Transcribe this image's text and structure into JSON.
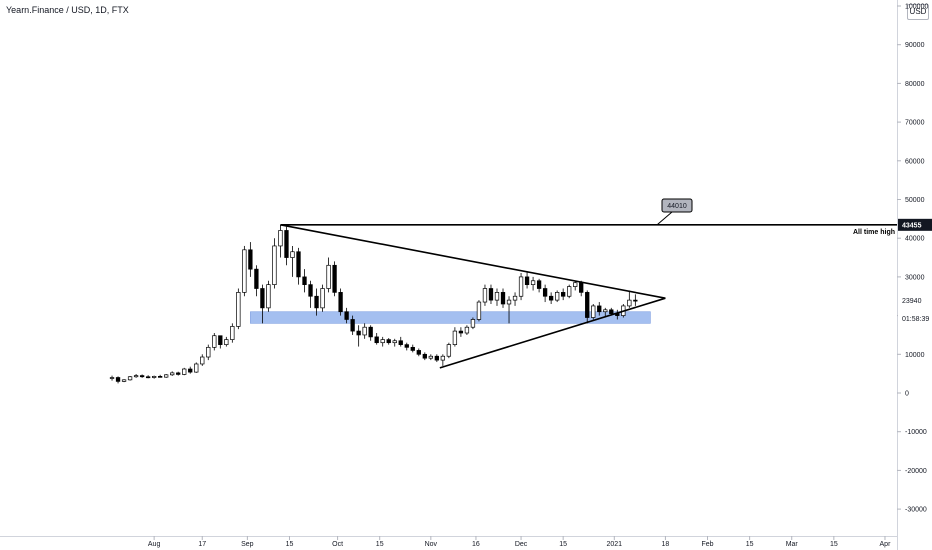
{
  "header": {
    "title": "Yearn.Finance / USD, 1D, FTX",
    "currency_button": "USD"
  },
  "chart_data": {
    "type": "candlestick",
    "title": "Yearn.Finance / USD, 1D, FTX",
    "y_ticks": [
      100000,
      90000,
      80000,
      70000,
      60000,
      50000,
      40000,
      30000,
      20000,
      10000,
      0,
      -10000,
      -20000,
      -30000
    ],
    "y_tick_labels": [
      "100000",
      "90000",
      "80000",
      "70000",
      "60000",
      "50000",
      "40000",
      "30000",
      "20000",
      "10000",
      "0",
      "-10000",
      "-20000",
      "-30000"
    ],
    "ylim": [
      -37000,
      102000
    ],
    "x_ticks": [
      {
        "label": "Aug",
        "date": "2020-08-01"
      },
      {
        "label": "17",
        "date": "2020-08-17"
      },
      {
        "label": "Sep",
        "date": "2020-09-01"
      },
      {
        "label": "15",
        "date": "2020-09-15"
      },
      {
        "label": "Oct",
        "date": "2020-10-01"
      },
      {
        "label": "15",
        "date": "2020-10-15"
      },
      {
        "label": "Nov",
        "date": "2020-11-01"
      },
      {
        "label": "16",
        "date": "2020-11-16"
      },
      {
        "label": "Dec",
        "date": "2020-12-01"
      },
      {
        "label": "15",
        "date": "2020-12-15"
      },
      {
        "label": "2021",
        "date": "2021-01-01"
      },
      {
        "label": "18",
        "date": "2021-01-18"
      },
      {
        "label": "Feb",
        "date": "2021-02-01"
      },
      {
        "label": "15",
        "date": "2021-02-15"
      },
      {
        "label": "Mar",
        "date": "2021-03-01"
      },
      {
        "label": "15",
        "date": "2021-03-15"
      },
      {
        "label": "Apr",
        "date": "2021-04-01"
      }
    ],
    "xlim": [
      "2020-07-14",
      "2021-04-05"
    ],
    "price_markers": [
      {
        "label": "43455",
        "value": 43455,
        "style": "dark"
      },
      {
        "label": "23940",
        "value": 23940,
        "style": "plain"
      },
      {
        "label": "01:58:39",
        "value": 19300,
        "style": "plain"
      }
    ],
    "annotations": {
      "all_time_high_label": "All time high",
      "callout_label": "44010"
    },
    "ath_line": {
      "start": "2020-09-12",
      "end": "2021-04-05",
      "value": 43455
    },
    "triangle": {
      "upper": [
        {
          "date": "2020-09-12",
          "value": 43455
        },
        {
          "date": "2021-01-18",
          "value": 24500
        }
      ],
      "lower": [
        {
          "date": "2020-11-04",
          "value": 6500
        },
        {
          "date": "2021-01-18",
          "value": 24500
        }
      ]
    },
    "support_zone": {
      "start": "2020-09-02",
      "end": "2021-01-13",
      "low": 18000,
      "high": 21000,
      "color": "#a4bff0"
    },
    "candles": [
      [
        "2020-07-18",
        3800,
        4500,
        3200,
        4000
      ],
      [
        "2020-07-20",
        4000,
        4300,
        2500,
        3000
      ],
      [
        "2020-07-22",
        3000,
        3600,
        2800,
        3400
      ],
      [
        "2020-07-24",
        3400,
        4400,
        3200,
        4200
      ],
      [
        "2020-07-26",
        4200,
        4900,
        3900,
        4500
      ],
      [
        "2020-07-28",
        4500,
        4800,
        3900,
        4200
      ],
      [
        "2020-07-30",
        4200,
        4600,
        3800,
        4000
      ],
      [
        "2020-08-01",
        4000,
        4500,
        3700,
        4300
      ],
      [
        "2020-08-03",
        4300,
        4700,
        4000,
        4100
      ],
      [
        "2020-08-05",
        4100,
        4900,
        3900,
        4700
      ],
      [
        "2020-08-07",
        4700,
        5600,
        4400,
        5200
      ],
      [
        "2020-08-09",
        5200,
        5500,
        4500,
        4800
      ],
      [
        "2020-08-11",
        4800,
        6500,
        4600,
        6200
      ],
      [
        "2020-08-13",
        6200,
        6800,
        5000,
        5400
      ],
      [
        "2020-08-15",
        5400,
        7900,
        5200,
        7500
      ],
      [
        "2020-08-17",
        7500,
        10000,
        7000,
        9300
      ],
      [
        "2020-08-19",
        9300,
        12500,
        8500,
        11800
      ],
      [
        "2020-08-21",
        11800,
        15500,
        11000,
        14800
      ],
      [
        "2020-08-23",
        14800,
        14500,
        11500,
        12500
      ],
      [
        "2020-08-25",
        12500,
        14500,
        12000,
        13800
      ],
      [
        "2020-08-27",
        13800,
        18000,
        13000,
        17200
      ],
      [
        "2020-08-29",
        17200,
        27000,
        16500,
        26000
      ],
      [
        "2020-08-31",
        26000,
        38000,
        25000,
        37000
      ],
      [
        "2020-09-02",
        37000,
        39000,
        30000,
        32000
      ],
      [
        "2020-09-04",
        32000,
        33000,
        25000,
        27000
      ],
      [
        "2020-09-06",
        27000,
        28000,
        18000,
        22000
      ],
      [
        "2020-09-08",
        22000,
        29000,
        21000,
        28000
      ],
      [
        "2020-09-10",
        28000,
        40000,
        27000,
        38000
      ],
      [
        "2020-09-12",
        38000,
        43455,
        35000,
        42000
      ],
      [
        "2020-09-14",
        42000,
        43000,
        33000,
        35000
      ],
      [
        "2020-09-16",
        35000,
        38000,
        30000,
        36500
      ],
      [
        "2020-09-18",
        36500,
        37500,
        28000,
        30000
      ],
      [
        "2020-09-20",
        30000,
        32000,
        26000,
        28000
      ],
      [
        "2020-09-22",
        28000,
        29000,
        22000,
        25000
      ],
      [
        "2020-09-24",
        25000,
        27000,
        20000,
        22000
      ],
      [
        "2020-09-26",
        22000,
        28000,
        21000,
        27000
      ],
      [
        "2020-09-28",
        27000,
        35000,
        26000,
        33000
      ],
      [
        "2020-09-30",
        33000,
        34000,
        25000,
        26000
      ],
      [
        "2020-10-02",
        26000,
        27000,
        20000,
        21000
      ],
      [
        "2020-10-04",
        21000,
        22000,
        18000,
        19000
      ],
      [
        "2020-10-06",
        19000,
        20000,
        15000,
        16000
      ],
      [
        "2020-10-08",
        16000,
        17500,
        12000,
        15000
      ],
      [
        "2020-10-10",
        15000,
        18000,
        14000,
        17000
      ],
      [
        "2020-10-12",
        17000,
        17500,
        13500,
        14500
      ],
      [
        "2020-10-14",
        14500,
        15500,
        12500,
        13000
      ],
      [
        "2020-10-16",
        13000,
        14500,
        12000,
        13800
      ],
      [
        "2020-10-18",
        13800,
        14200,
        12500,
        13000
      ],
      [
        "2020-10-20",
        13000,
        14000,
        12000,
        13500
      ],
      [
        "2020-10-22",
        13500,
        14500,
        12000,
        12500
      ],
      [
        "2020-10-24",
        12500,
        13000,
        11000,
        11800
      ],
      [
        "2020-10-26",
        11800,
        12500,
        10500,
        11000
      ],
      [
        "2020-10-28",
        11000,
        11500,
        9500,
        10000
      ],
      [
        "2020-10-30",
        10000,
        10500,
        8500,
        9000
      ],
      [
        "2020-11-01",
        9000,
        10000,
        8500,
        9500
      ],
      [
        "2020-11-03",
        9500,
        10000,
        8000,
        8500
      ],
      [
        "2020-11-05",
        8500,
        10000,
        7000,
        9500
      ],
      [
        "2020-11-07",
        9500,
        13000,
        9000,
        12500
      ],
      [
        "2020-11-09",
        12500,
        17000,
        12000,
        16000
      ],
      [
        "2020-11-11",
        16000,
        17000,
        14500,
        15500
      ],
      [
        "2020-11-13",
        15500,
        17500,
        15000,
        17000
      ],
      [
        "2020-11-15",
        17000,
        19500,
        16500,
        19000
      ],
      [
        "2020-11-17",
        19000,
        24000,
        18500,
        23500
      ],
      [
        "2020-11-19",
        23500,
        28000,
        22500,
        27000
      ],
      [
        "2020-11-21",
        27000,
        28000,
        23000,
        24000
      ],
      [
        "2020-11-23",
        24000,
        27000,
        22500,
        26000
      ],
      [
        "2020-11-25",
        26000,
        27000,
        22000,
        23000
      ],
      [
        "2020-11-27",
        23000,
        25000,
        18000,
        24000
      ],
      [
        "2020-11-29",
        24000,
        26000,
        22500,
        25000
      ],
      [
        "2020-12-01",
        25000,
        31000,
        24000,
        30000
      ],
      [
        "2020-12-03",
        30000,
        31500,
        27000,
        28000
      ],
      [
        "2020-12-05",
        28000,
        30000,
        26500,
        29000
      ],
      [
        "2020-12-07",
        29000,
        29500,
        26000,
        27000
      ],
      [
        "2020-12-09",
        27000,
        28000,
        23500,
        25000
      ],
      [
        "2020-12-11",
        25000,
        26000,
        23000,
        24000
      ],
      [
        "2020-12-13",
        24000,
        26500,
        23500,
        26000
      ],
      [
        "2020-12-15",
        26000,
        27000,
        24000,
        25000
      ],
      [
        "2020-12-17",
        25000,
        28000,
        24500,
        27500
      ],
      [
        "2020-12-19",
        27500,
        29000,
        26500,
        28500
      ],
      [
        "2020-12-21",
        28500,
        29000,
        25000,
        26000
      ],
      [
        "2020-12-23",
        26000,
        26500,
        18000,
        19500
      ],
      [
        "2020-12-25",
        19500,
        23000,
        19000,
        22500
      ],
      [
        "2020-12-27",
        22500,
        23500,
        20000,
        21000
      ],
      [
        "2020-12-29",
        21000,
        22000,
        19500,
        21500
      ],
      [
        "2020-12-31",
        21500,
        22000,
        20000,
        20500
      ],
      [
        "2021-01-02",
        20500,
        21500,
        19000,
        20000
      ],
      [
        "2021-01-04",
        20000,
        23000,
        19500,
        22500
      ],
      [
        "2021-01-06",
        22500,
        26500,
        22000,
        24000
      ],
      [
        "2021-01-08",
        24000,
        25500,
        22500,
        23940
      ]
    ]
  }
}
